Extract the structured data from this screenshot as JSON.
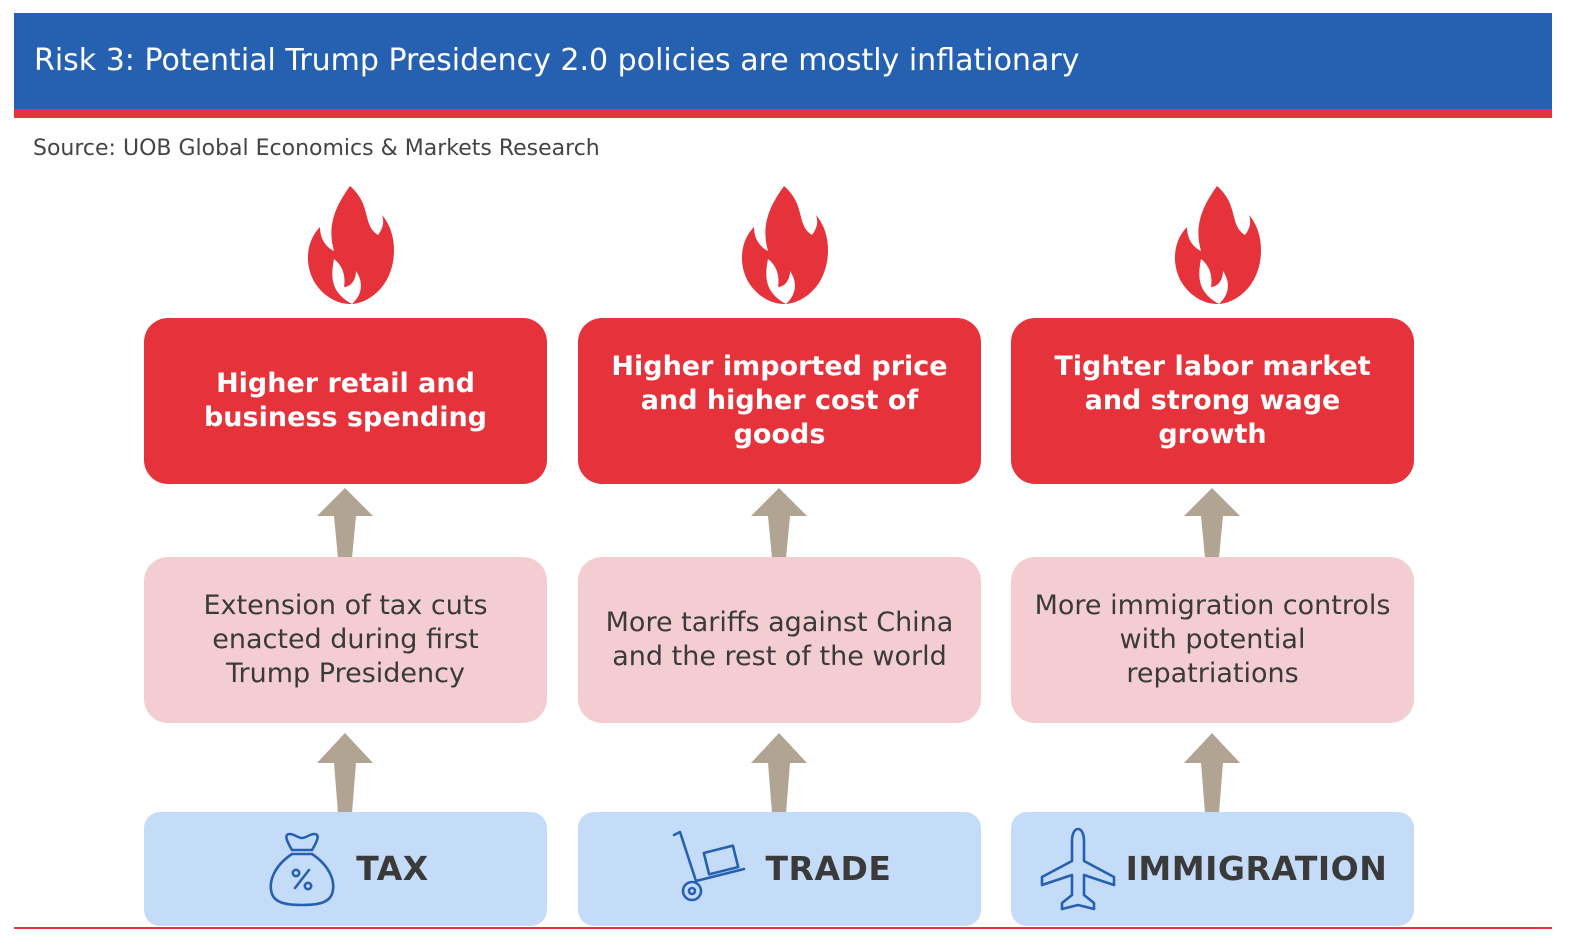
{
  "header": {
    "title": "Risk 3: Potential Trump Presidency 2.0 policies are mostly inflationary"
  },
  "source": "Source: UOB Global Economics & Markets Research",
  "colors": {
    "header_blue": "#2660b0",
    "accent_red": "#e5323b",
    "policy_pink": "#f4cdd3",
    "category_blue": "#c5dcf8",
    "arrow_taupe": "#b1a493",
    "icon_blue": "#2660b0"
  },
  "columns": [
    {
      "effect": "Higher retail and business spending",
      "policy": "Extension of tax cuts enacted during first Trump Presidency",
      "category": "TAX",
      "icon": "money-bag-icon"
    },
    {
      "effect": "Higher imported price and higher cost of goods",
      "policy": "More tariffs against China and the rest of the world",
      "category": "TRADE",
      "icon": "hand-truck-icon"
    },
    {
      "effect": "Tighter labor market and strong wage growth",
      "policy": "More immigration controls with potential repatriations",
      "category": "IMMIGRATION",
      "icon": "airplane-icon"
    }
  ]
}
